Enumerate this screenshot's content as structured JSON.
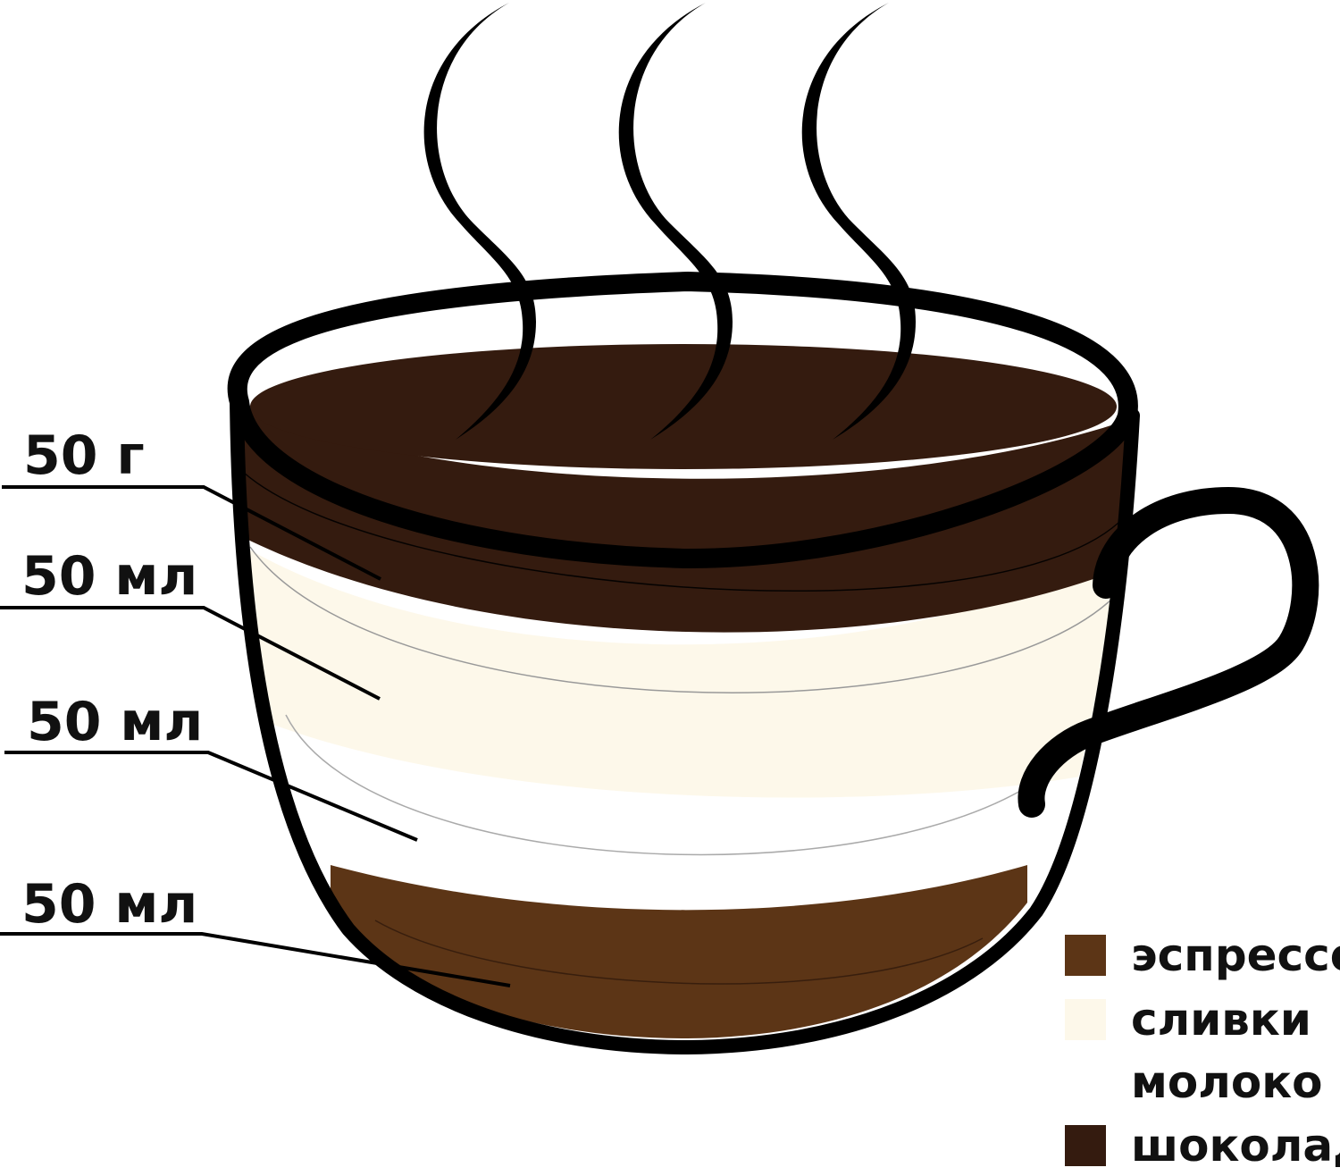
{
  "layer_labels": [
    {
      "amount": "50 г"
    },
    {
      "amount": "50 мл"
    },
    {
      "amount": "50 мл"
    },
    {
      "amount": "50 мл"
    }
  ],
  "legend": [
    {
      "label": "эспрессо",
      "color": "#5c3516"
    },
    {
      "label": "сливки",
      "color": "#fdf8ea"
    },
    {
      "label": "молоко",
      "color": "#ffffff"
    },
    {
      "label": "шоколад",
      "color": "#341b0f"
    }
  ],
  "colors": {
    "outline": "#000000",
    "chocolate": "#341b0f",
    "cream": "#fdf8ea",
    "milk": "#ffffff",
    "espresso": "#5c3516"
  }
}
